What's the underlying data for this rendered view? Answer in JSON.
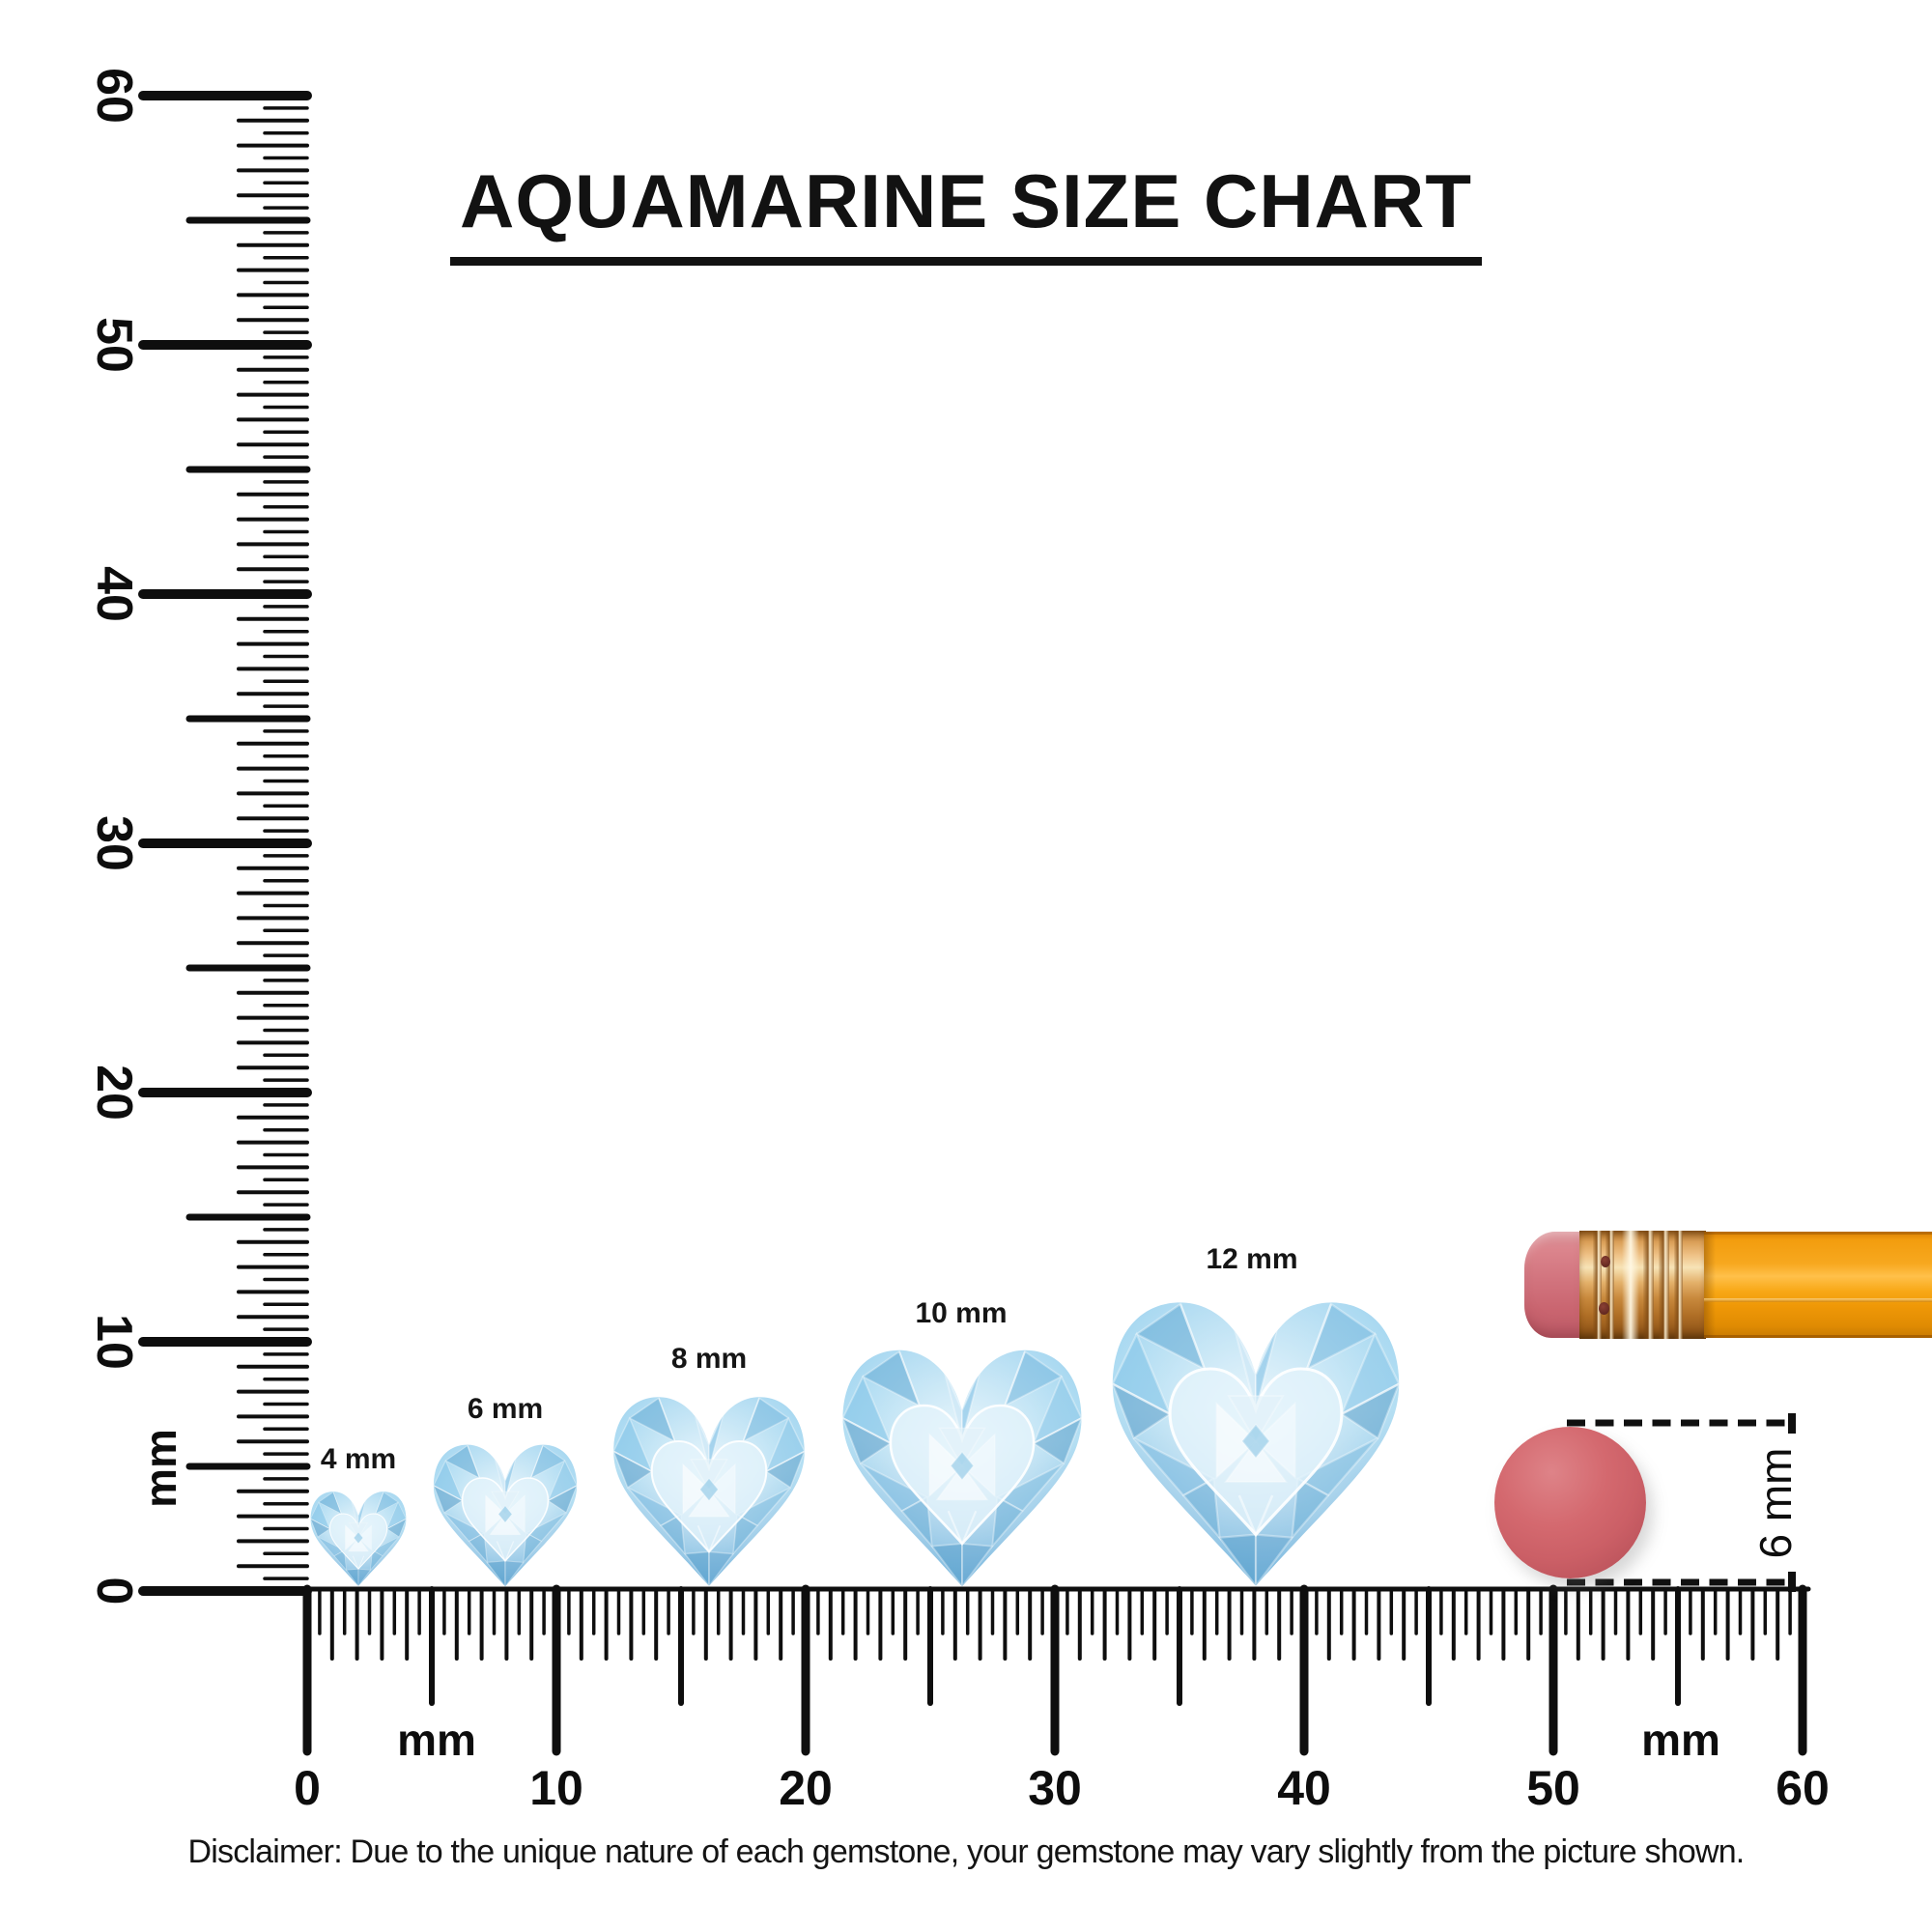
{
  "title": "AQUAMARINE SIZE CHART",
  "gems": [
    {
      "label": "4 mm",
      "size_mm": 4
    },
    {
      "label": "6 mm",
      "size_mm": 6
    },
    {
      "label": "8 mm",
      "size_mm": 8
    },
    {
      "label": "10 mm",
      "size_mm": 10
    },
    {
      "label": "12 mm",
      "size_mm": 12
    }
  ],
  "vertical_ruler": {
    "unit": "mm",
    "major_tick_labels": [
      "0",
      "10",
      "20",
      "30",
      "40",
      "50",
      "60"
    ],
    "range_mm": [
      0,
      60
    ],
    "minor_step_mm": 0.5
  },
  "horizontal_ruler": {
    "unit": "mm",
    "major_tick_labels": [
      "0",
      "10",
      "20",
      "30",
      "40",
      "50",
      "60"
    ],
    "range_mm": [
      0,
      60
    ],
    "minor_step_mm": 0.5,
    "unit_label_count": 2
  },
  "scale_reference": {
    "disc_diameter_label": "6 mm",
    "objects": [
      "pencil-eraser-end",
      "round-eraser-disc"
    ]
  },
  "disclaimer": "Disclaimer: Due to the unique nature of each gemstone, your gemstone may vary slightly from the picture shown.",
  "colors": {
    "ink": "#111111",
    "gem_light": "#e8f4fb",
    "gem_mid": "#9fd2ee",
    "gem_deep": "#5a9fca",
    "pencil_body_orange": "#f5a011",
    "pencil_ferrule_gold": "#d9a05b",
    "pencil_eraser_pink": "#d2747e",
    "disc_red": "#cd6269",
    "background": "#ffffff"
  }
}
